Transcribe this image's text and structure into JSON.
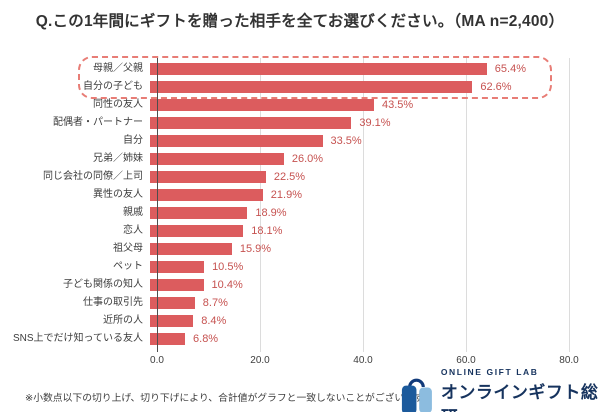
{
  "title": "Q.この1年間にギフトを贈った相手を全てお選びください。（MA n=2,400）",
  "chart_data": {
    "type": "bar",
    "orientation": "horizontal",
    "title": "Q.この1年間にギフトを贈った相手を全てお選びください。（MA n=2,400）",
    "categories": [
      "母親／父親",
      "自分の子ども",
      "同性の友人",
      "配偶者・パートナー",
      "自分",
      "兄弟／姉妹",
      "同じ会社の同僚／上司",
      "異性の友人",
      "親戚",
      "恋人",
      "祖父母",
      "ペット",
      "子ども関係の知人",
      "仕事の取引先",
      "近所の人",
      "SNS上でだけ知っている友人"
    ],
    "values": [
      65.4,
      62.6,
      43.5,
      39.1,
      33.5,
      26.0,
      22.5,
      21.9,
      18.9,
      18.1,
      15.9,
      10.5,
      10.4,
      8.7,
      8.4,
      6.8
    ],
    "value_labels": [
      "65.4%",
      "62.6%",
      "43.5%",
      "39.1%",
      "33.5%",
      "26.0%",
      "22.5%",
      "21.9%",
      "18.9%",
      "18.1%",
      "15.9%",
      "10.5%",
      "10.4%",
      "8.7%",
      "8.4%",
      "6.8%"
    ],
    "xlim": [
      0,
      80
    ],
    "x_ticks": [
      "0.0",
      "20.0",
      "40.0",
      "60.0",
      "80.0"
    ],
    "grid": true,
    "legend": "none",
    "bar_color": "#dc5c5e",
    "value_label_color": "#c65250",
    "highlight_first_n": 2,
    "highlight_style": "red-dashed-rounded-box"
  },
  "footnote": "※小数点以下の切り上げ、切り下げにより、合計値がグラフと一致しないことがございます。",
  "logo": {
    "icon": "gift-bag-icon",
    "top_text": "ONLINE GIFT LAB",
    "bottom_text": "オンラインギフト総研",
    "icon_dark_blue": "#1c5a9c",
    "icon_light_blue": "#8cbcdf",
    "text_color": "#16335e"
  },
  "colors": {
    "background": "#ffffff",
    "title_text": "#333333",
    "axis_line": "#4d4d4d",
    "gridline": "#dcdcdc",
    "highlight_dash": "#e87d76"
  }
}
